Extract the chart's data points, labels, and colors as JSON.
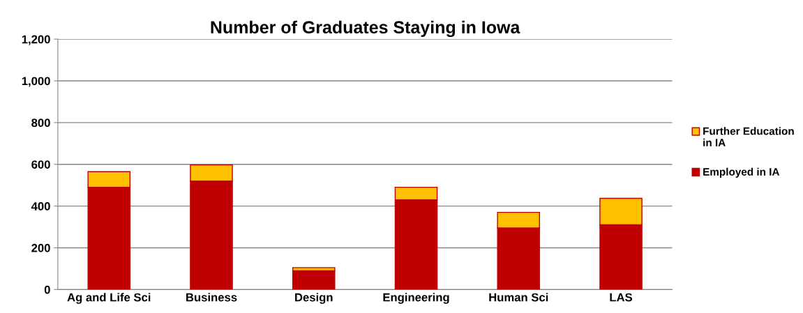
{
  "chart_data": {
    "type": "bar",
    "title": "Number of Graduates Staying in Iowa",
    "categories": [
      "Ag and Life Sci",
      "Business",
      "Design",
      "Engineering",
      "Human Sci",
      "LAS"
    ],
    "stacked": true,
    "series": [
      {
        "name": "Employed in IA",
        "color": "#c00000",
        "values": [
          490,
          520,
          90,
          430,
          295,
          310
        ]
      },
      {
        "name": "Further Education in IA",
        "color": "#ffc000",
        "values": [
          75,
          77,
          15,
          60,
          75,
          127
        ]
      }
    ],
    "ylim": [
      0,
      1200
    ],
    "yticks": [
      {
        "value": 0,
        "label": "0"
      },
      {
        "value": 200,
        "label": "200"
      },
      {
        "value": 400,
        "label": "400"
      },
      {
        "value": 600,
        "label": "600"
      },
      {
        "value": 800,
        "label": "800"
      },
      {
        "value": 1000,
        "label": "1,000"
      },
      {
        "value": 1200,
        "label": "1,200"
      }
    ],
    "grid": "y",
    "legend": "right"
  }
}
